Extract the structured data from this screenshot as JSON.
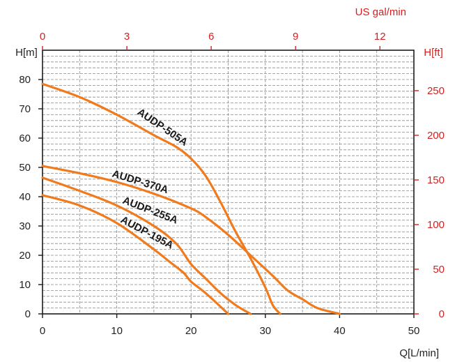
{
  "chart_data": {
    "type": "line",
    "top_axis": {
      "label": "US gal/min",
      "ticks": [
        "0",
        "3",
        "6",
        "9",
        "12"
      ],
      "values": [
        0,
        3,
        6,
        9,
        12
      ],
      "color": "#d42020"
    },
    "bottom_axis": {
      "label": "Q[L/min]",
      "ticks": [
        "0",
        "10",
        "20",
        "30",
        "40",
        "50"
      ],
      "values": [
        0,
        10,
        20,
        30,
        40,
        50
      ],
      "xlim": [
        0,
        50
      ]
    },
    "left_axis": {
      "label": "H[m]",
      "ticks": [
        "0",
        "10",
        "20",
        "30",
        "40",
        "50",
        "60",
        "70",
        "80"
      ],
      "values": [
        0,
        10,
        20,
        30,
        40,
        50,
        60,
        70,
        80
      ],
      "ylim": [
        0,
        90
      ]
    },
    "right_axis": {
      "label": "H[ft]",
      "ticks": [
        "0",
        "50",
        "100",
        "150",
        "200",
        "250"
      ],
      "values": [
        0,
        50,
        100,
        150,
        200,
        250
      ],
      "color": "#d42020"
    },
    "grid": true,
    "curve_color": "#f07a1c",
    "series": [
      {
        "name": "AUDP-505A",
        "x": [
          0,
          5,
          10,
          15,
          18,
          20,
          22,
          24,
          26,
          28,
          30,
          31,
          32
        ],
        "y": [
          78.5,
          74,
          68,
          61,
          57,
          53,
          47,
          38,
          28,
          19,
          9,
          3,
          0
        ]
      },
      {
        "name": "AUDP-370A",
        "x": [
          0,
          5,
          10,
          15,
          20,
          22,
          25,
          28,
          31,
          33,
          35,
          37,
          40
        ],
        "y": [
          50.5,
          48,
          45,
          41,
          36,
          33,
          27,
          20,
          13,
          8,
          5,
          2,
          0
        ]
      },
      {
        "name": "AUDP-255A",
        "x": [
          0,
          5,
          10,
          15,
          18,
          20,
          22,
          24,
          26,
          28
        ],
        "y": [
          46.5,
          42,
          37,
          30,
          24,
          17,
          12,
          7,
          3,
          0
        ]
      },
      {
        "name": "AUDP-195A",
        "x": [
          0,
          5,
          10,
          15,
          17,
          19,
          20,
          22,
          25
        ],
        "y": [
          40.5,
          37,
          31,
          22,
          18,
          14,
          11,
          7,
          0
        ]
      }
    ]
  }
}
